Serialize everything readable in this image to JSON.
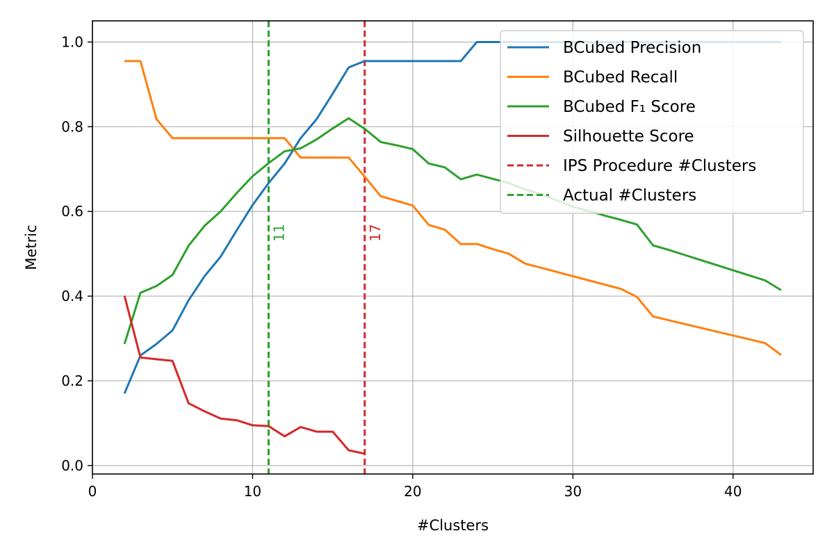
{
  "chart_data": {
    "type": "line",
    "title": "",
    "xlabel": "#Clusters",
    "ylabel": "Metric",
    "xlim": [
      0,
      45
    ],
    "ylim": [
      -0.02,
      1.05
    ],
    "xticks": [
      0,
      10,
      20,
      30,
      40
    ],
    "yticks": [
      0.0,
      0.2,
      0.4,
      0.6,
      0.8,
      1.0
    ],
    "xtick_labels": [
      "0",
      "10",
      "20",
      "30",
      "40"
    ],
    "ytick_labels": [
      "0.0",
      "0.2",
      "0.4",
      "0.6",
      "0.8",
      "1.0"
    ],
    "grid": true,
    "legend_position": "top-right",
    "series": [
      {
        "name": "BCubed Precision",
        "color": "#1f77b4",
        "style": "solid",
        "x": [
          2,
          3,
          4,
          5,
          6,
          7,
          8,
          9,
          10,
          11,
          12,
          13,
          14,
          15,
          16,
          17,
          18,
          19,
          20,
          21,
          22,
          23,
          24,
          25,
          26,
          27,
          28,
          29,
          30,
          31,
          32,
          33,
          34,
          35,
          36,
          37,
          38,
          39,
          40,
          41,
          42,
          43
        ],
        "y": [
          0.17,
          0.26,
          0.287,
          0.319,
          0.39,
          0.447,
          0.493,
          0.555,
          0.615,
          0.667,
          0.713,
          0.773,
          0.818,
          0.878,
          0.94,
          0.955,
          0.955,
          0.955,
          0.955,
          0.955,
          0.955,
          0.955,
          1.0,
          1.0,
          1.0,
          1.0,
          1.0,
          1.0,
          1.0,
          1.0,
          1.0,
          1.0,
          1.0,
          1.0,
          1.0,
          1.0,
          1.0,
          1.0,
          1.0,
          1.0,
          1.0,
          1.0
        ]
      },
      {
        "name": "BCubed Recall",
        "color": "#ff7f0e",
        "style": "solid",
        "x": [
          2,
          3,
          4,
          5,
          6,
          7,
          8,
          9,
          10,
          11,
          12,
          13,
          14,
          15,
          16,
          17,
          18,
          19,
          20,
          21,
          22,
          23,
          24,
          25,
          26,
          27,
          28,
          29,
          30,
          31,
          32,
          33,
          34,
          35,
          36,
          37,
          38,
          39,
          40,
          41,
          42,
          43
        ],
        "y": [
          0.955,
          0.955,
          0.818,
          0.773,
          0.773,
          0.773,
          0.773,
          0.773,
          0.773,
          0.773,
          0.773,
          0.727,
          0.727,
          0.727,
          0.727,
          0.682,
          0.636,
          0.625,
          0.614,
          0.568,
          0.557,
          0.523,
          0.523,
          0.511,
          0.5,
          0.477,
          0.467,
          0.457,
          0.447,
          0.437,
          0.427,
          0.417,
          0.398,
          0.352,
          0.343,
          0.334,
          0.325,
          0.316,
          0.307,
          0.298,
          0.289,
          0.261
        ]
      },
      {
        "name": "BCubed F₁ Score",
        "color": "#2ca02c",
        "style": "solid",
        "x": [
          2,
          3,
          4,
          5,
          6,
          7,
          8,
          9,
          10,
          11,
          12,
          13,
          14,
          15,
          16,
          17,
          18,
          19,
          20,
          21,
          22,
          23,
          24,
          25,
          26,
          27,
          28,
          29,
          30,
          31,
          32,
          33,
          34,
          35,
          36,
          37,
          38,
          39,
          40,
          41,
          42,
          43
        ],
        "y": [
          0.287,
          0.408,
          0.424,
          0.45,
          0.519,
          0.566,
          0.6,
          0.643,
          0.683,
          0.714,
          0.742,
          0.749,
          0.77,
          0.796,
          0.82,
          0.795,
          0.764,
          0.756,
          0.747,
          0.713,
          0.704,
          0.676,
          0.687,
          0.677,
          0.667,
          0.652,
          0.641,
          0.626,
          0.611,
          0.601,
          0.59,
          0.58,
          0.569,
          0.52,
          0.509,
          0.497,
          0.485,
          0.473,
          0.461,
          0.449,
          0.437,
          0.414
        ]
      },
      {
        "name": "Silhouette Score",
        "color": "#d62728",
        "style": "solid",
        "x": [
          2,
          3,
          4,
          5,
          6,
          7,
          8,
          9,
          10,
          11,
          12,
          13,
          14,
          15,
          16,
          17
        ],
        "y": [
          0.401,
          0.255,
          0.251,
          0.247,
          0.147,
          0.128,
          0.111,
          0.107,
          0.095,
          0.093,
          0.069,
          0.091,
          0.08,
          0.08,
          0.036,
          0.028
        ]
      }
    ],
    "vlines": [
      {
        "name": "IPS Procedure #Clusters",
        "x": 17,
        "color": "#d62728",
        "style": "dashed",
        "label": "17"
      },
      {
        "name": "Actual #Clusters",
        "x": 11,
        "color": "#2ca02c",
        "style": "dashed",
        "label": "11"
      }
    ]
  },
  "legend": {
    "entries": [
      {
        "text": "BCubed Precision",
        "color": "#1f77b4",
        "style": "solid"
      },
      {
        "text": "BCubed Recall",
        "color": "#ff7f0e",
        "style": "solid"
      },
      {
        "text": "BCubed F₁ Score",
        "color": "#2ca02c",
        "style": "solid"
      },
      {
        "text": "Silhouette Score",
        "color": "#d62728",
        "style": "solid"
      },
      {
        "text": "IPS Procedure #Clusters",
        "color": "#d62728",
        "style": "dashed"
      },
      {
        "text": "Actual #Clusters",
        "color": "#2ca02c",
        "style": "dashed"
      }
    ]
  }
}
